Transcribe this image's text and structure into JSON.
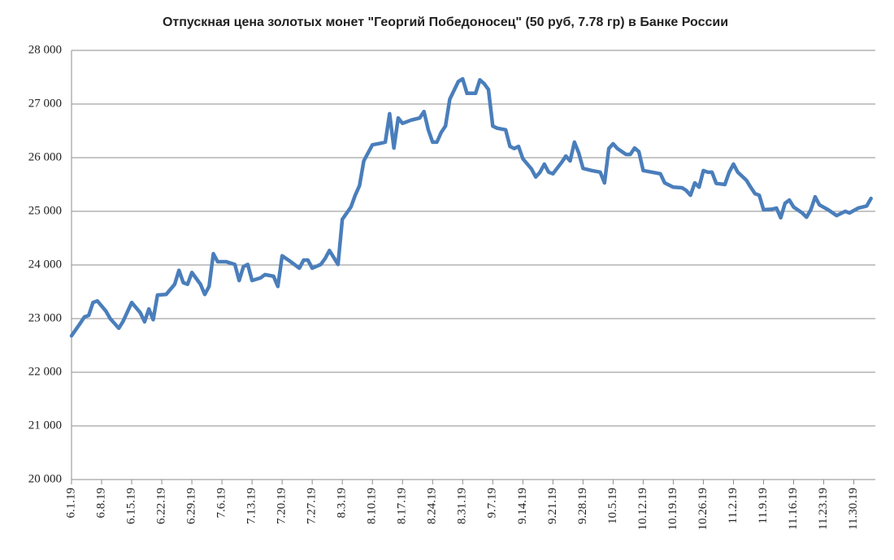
{
  "chart_data": {
    "type": "line",
    "title": "Отпускная цена золотых монет \"Георгий  Победоносец\"  (50 руб, 7.78 гр) в Банке России",
    "x": [
      "2019-06-01",
      "2019-06-03",
      "2019-06-04",
      "2019-06-05",
      "2019-06-06",
      "2019-06-07",
      "2019-06-09",
      "2019-06-10",
      "2019-06-11",
      "2019-06-12",
      "2019-06-13",
      "2019-06-15",
      "2019-06-17",
      "2019-06-18",
      "2019-06-19",
      "2019-06-20",
      "2019-06-21",
      "2019-06-23",
      "2019-06-25",
      "2019-06-26",
      "2019-06-27",
      "2019-06-28",
      "2019-06-29",
      "2019-07-01",
      "2019-07-02",
      "2019-07-03",
      "2019-07-04",
      "2019-07-05",
      "2019-07-07",
      "2019-07-09",
      "2019-07-10",
      "2019-07-11",
      "2019-07-12",
      "2019-07-13",
      "2019-07-15",
      "2019-07-16",
      "2019-07-18",
      "2019-07-19",
      "2019-07-20",
      "2019-07-22",
      "2019-07-24",
      "2019-07-25",
      "2019-07-26",
      "2019-07-27",
      "2019-07-29",
      "2019-07-30",
      "2019-07-31",
      "2019-08-02",
      "2019-08-03",
      "2019-08-05",
      "2019-08-06",
      "2019-08-07",
      "2019-08-08",
      "2019-08-10",
      "2019-08-12",
      "2019-08-13",
      "2019-08-14",
      "2019-08-15",
      "2019-08-16",
      "2019-08-17",
      "2019-08-19",
      "2019-08-21",
      "2019-08-22",
      "2019-08-23",
      "2019-08-24",
      "2019-08-25",
      "2019-08-26",
      "2019-08-27",
      "2019-08-28",
      "2019-08-30",
      "2019-08-31",
      "2019-09-01",
      "2019-09-02",
      "2019-09-03",
      "2019-09-04",
      "2019-09-05",
      "2019-09-06",
      "2019-09-07",
      "2019-09-08",
      "2019-09-10",
      "2019-09-11",
      "2019-09-12",
      "2019-09-13",
      "2019-09-14",
      "2019-09-16",
      "2019-09-17",
      "2019-09-18",
      "2019-09-19",
      "2019-09-20",
      "2019-09-21",
      "2019-09-23",
      "2019-09-24",
      "2019-09-25",
      "2019-09-26",
      "2019-09-27",
      "2019-09-28",
      "2019-09-30",
      "2019-10-02",
      "2019-10-03",
      "2019-10-04",
      "2019-10-05",
      "2019-10-06",
      "2019-10-08",
      "2019-10-09",
      "2019-10-10",
      "2019-10-11",
      "2019-10-12",
      "2019-10-14",
      "2019-10-16",
      "2019-10-17",
      "2019-10-19",
      "2019-10-21",
      "2019-10-22",
      "2019-10-23",
      "2019-10-24",
      "2019-10-25",
      "2019-10-26",
      "2019-10-27",
      "2019-10-28",
      "2019-10-29",
      "2019-10-31",
      "2019-11-01",
      "2019-11-02",
      "2019-11-03",
      "2019-11-05",
      "2019-11-06",
      "2019-11-07",
      "2019-11-08",
      "2019-11-09",
      "2019-11-11",
      "2019-11-12",
      "2019-11-13",
      "2019-11-14",
      "2019-11-15",
      "2019-11-16",
      "2019-11-18",
      "2019-11-19",
      "2019-11-20",
      "2019-11-21",
      "2019-11-22",
      "2019-11-24",
      "2019-11-26",
      "2019-11-28",
      "2019-11-29",
      "2019-12-01",
      "2019-12-03",
      "2019-12-04"
    ],
    "series": [
      {
        "color": "#4a7ebb",
        "values": [
          22680,
          22910,
          23030,
          23060,
          23300,
          23330,
          23140,
          23000,
          22910,
          22820,
          22950,
          23300,
          23110,
          22940,
          23180,
          22980,
          23440,
          23450,
          23640,
          23900,
          23670,
          23640,
          23860,
          23640,
          23450,
          23600,
          24210,
          24060,
          24060,
          24010,
          23710,
          23970,
          24010,
          23710,
          23760,
          23820,
          23790,
          23600,
          24170,
          24060,
          23940,
          24090,
          24090,
          23940,
          24010,
          24120,
          24270,
          24010,
          24850,
          25080,
          25300,
          25480,
          25940,
          26240,
          26270,
          26290,
          26820,
          26180,
          26740,
          26640,
          26700,
          26740,
          26860,
          26520,
          26290,
          26290,
          26470,
          26590,
          27090,
          27420,
          27470,
          27200,
          27200,
          27200,
          27450,
          27380,
          27270,
          26590,
          26550,
          26520,
          26210,
          26170,
          26210,
          25980,
          25790,
          25640,
          25730,
          25880,
          25730,
          25700,
          25910,
          26030,
          25940,
          26290,
          26090,
          25800,
          25760,
          25730,
          25530,
          26170,
          26260,
          26170,
          26060,
          26060,
          26180,
          26110,
          25760,
          25730,
          25700,
          25530,
          25450,
          25440,
          25390,
          25300,
          25530,
          25450,
          25760,
          25730,
          25730,
          25520,
          25500,
          25730,
          25880,
          25730,
          25580,
          25450,
          25330,
          25300,
          25030,
          25040,
          25060,
          24880,
          25150,
          25210,
          25080,
          24970,
          24890,
          25030,
          25270,
          25120,
          25030,
          24920,
          25000,
          24970,
          25060,
          25100,
          25240
        ]
      }
    ],
    "xlim": [
      "2019-06-01",
      "2019-12-05"
    ],
    "xticks": [
      {
        "value": "2019-06-01",
        "label": "6.1.19"
      },
      {
        "value": "2019-06-08",
        "label": "6.8.19"
      },
      {
        "value": "2019-06-15",
        "label": "6.15.19"
      },
      {
        "value": "2019-06-22",
        "label": "6.22.19"
      },
      {
        "value": "2019-06-29",
        "label": "6.29.19"
      },
      {
        "value": "2019-07-06",
        "label": "7.6.19"
      },
      {
        "value": "2019-07-13",
        "label": "7.13.19"
      },
      {
        "value": "2019-07-20",
        "label": "7.20.19"
      },
      {
        "value": "2019-07-27",
        "label": "7.27.19"
      },
      {
        "value": "2019-08-03",
        "label": "8.3.19"
      },
      {
        "value": "2019-08-10",
        "label": "8.10.19"
      },
      {
        "value": "2019-08-17",
        "label": "8.17.19"
      },
      {
        "value": "2019-08-24",
        "label": "8.24.19"
      },
      {
        "value": "2019-08-31",
        "label": "8.31.19"
      },
      {
        "value": "2019-09-07",
        "label": "9.7.19"
      },
      {
        "value": "2019-09-14",
        "label": "9.14.19"
      },
      {
        "value": "2019-09-21",
        "label": "9.21.19"
      },
      {
        "value": "2019-09-28",
        "label": "9.28.19"
      },
      {
        "value": "2019-10-05",
        "label": "10.5.19"
      },
      {
        "value": "2019-10-12",
        "label": "10.12.19"
      },
      {
        "value": "2019-10-19",
        "label": "10.19.19"
      },
      {
        "value": "2019-10-26",
        "label": "10.26.19"
      },
      {
        "value": "2019-11-02",
        "label": "11.2.19"
      },
      {
        "value": "2019-11-09",
        "label": "11.9.19"
      },
      {
        "value": "2019-11-16",
        "label": "11.16.19"
      },
      {
        "value": "2019-11-23",
        "label": "11.23.19"
      },
      {
        "value": "2019-11-30",
        "label": "11.30.19"
      }
    ],
    "ylim": [
      20000,
      28000
    ],
    "yticks": [
      {
        "value": 20000,
        "label": "20 000"
      },
      {
        "value": 21000,
        "label": "21 000"
      },
      {
        "value": 22000,
        "label": "22 000"
      },
      {
        "value": 23000,
        "label": "23 000"
      },
      {
        "value": 24000,
        "label": "24 000"
      },
      {
        "value": 25000,
        "label": "25 000"
      },
      {
        "value": 26000,
        "label": "26 000"
      },
      {
        "value": 27000,
        "label": "27 000"
      },
      {
        "value": 28000,
        "label": "28 000"
      }
    ],
    "grid": true
  }
}
